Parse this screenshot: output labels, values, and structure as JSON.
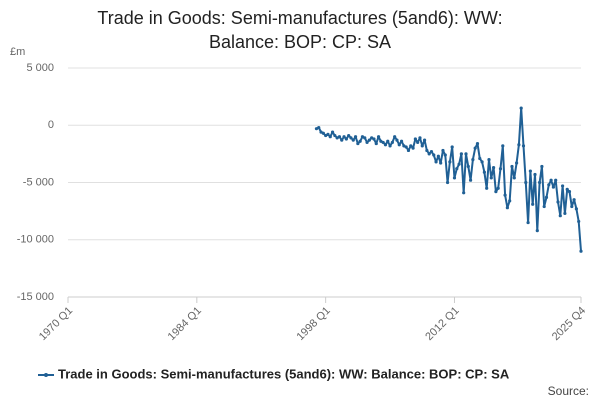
{
  "chart_data": {
    "type": "line",
    "title": "Trade in Goods: Semi-manufactures (5and6): WW: Balance: BOP: CP: SA",
    "y_label": "£m",
    "source": "Source:",
    "xlim": [
      1970,
      2025.75
    ],
    "xticks": [
      {
        "value": 1970,
        "label": "1970 Q1"
      },
      {
        "value": 1984,
        "label": "1984 Q1"
      },
      {
        "value": 1998,
        "label": "1998 Q1"
      },
      {
        "value": 2012,
        "label": "2012 Q1"
      },
      {
        "value": 2025.75,
        "label": "2025 Q4"
      }
    ],
    "ylim": [
      -15000,
      5000
    ],
    "yticks": [
      {
        "value": -15000,
        "label": "-15 000"
      },
      {
        "value": -10000,
        "label": "-10 000"
      },
      {
        "value": -5000,
        "label": "-5 000"
      },
      0,
      {
        "value": 5000,
        "label": "5 000"
      }
    ],
    "grid": true,
    "x": [
      1997,
      1997.25,
      1997.5,
      1997.75,
      1998,
      1998.25,
      1998.5,
      1998.75,
      1999,
      1999.25,
      1999.5,
      1999.75,
      2000,
      2000.25,
      2000.5,
      2000.75,
      2001,
      2001.25,
      2001.5,
      2001.75,
      2002,
      2002.25,
      2002.5,
      2002.75,
      2003,
      2003.25,
      2003.5,
      2003.75,
      2004,
      2004.25,
      2004.5,
      2004.75,
      2005,
      2005.25,
      2005.5,
      2005.75,
      2006,
      2006.25,
      2006.5,
      2006.75,
      2007,
      2007.25,
      2007.5,
      2007.75,
      2008,
      2008.25,
      2008.5,
      2008.75,
      2009,
      2009.25,
      2009.5,
      2009.75,
      2010,
      2010.25,
      2010.5,
      2010.75,
      2011,
      2011.25,
      2011.5,
      2011.75,
      2012,
      2012.25,
      2012.5,
      2012.75,
      2013,
      2013.25,
      2013.5,
      2013.75,
      2014,
      2014.25,
      2014.5,
      2014.75,
      2015,
      2015.25,
      2015.5,
      2015.75,
      2016,
      2016.25,
      2016.5,
      2016.75,
      2017,
      2017.25,
      2017.5,
      2017.75,
      2018,
      2018.25,
      2018.5,
      2018.75,
      2019,
      2019.25,
      2019.5,
      2019.75,
      2020,
      2020.25,
      2020.5,
      2020.75,
      2021,
      2021.25,
      2021.5,
      2021.75,
      2022,
      2022.25,
      2022.5,
      2022.75,
      2023,
      2023.25,
      2023.5,
      2023.75,
      2024,
      2024.25,
      2024.5,
      2024.75,
      2025,
      2025.25,
      2025.5,
      2025.75
    ],
    "series": [
      {
        "name": "Trade in Goods: Semi-manufactures (5and6): WW: Balance: BOP: CP: SA",
        "color": "#206095",
        "values": [
          -300,
          -200,
          -600,
          -700,
          -900,
          -800,
          -1000,
          -600,
          -900,
          -1100,
          -1000,
          -1300,
          -1000,
          -1200,
          -900,
          -1100,
          -1300,
          -1000,
          -1600,
          -1400,
          -1000,
          -1100,
          -1500,
          -1300,
          -1100,
          -1200,
          -1600,
          -1000,
          -1400,
          -1500,
          -1700,
          -1400,
          -1800,
          -1500,
          -1000,
          -1300,
          -1700,
          -1400,
          -1800,
          -1900,
          -2200,
          -1800,
          -2000,
          -1200,
          -1500,
          -1100,
          -1800,
          -1300,
          -2200,
          -2500,
          -2300,
          -2600,
          -3200,
          -2700,
          -3300,
          -2200,
          -2600,
          -5000,
          -3200,
          -1900,
          -4600,
          -3800,
          -3400,
          -2500,
          -5900,
          -2500,
          -3600,
          -4800,
          -3000,
          -2000,
          -1600,
          -2900,
          -3200,
          -4100,
          -5500,
          -3000,
          -4600,
          -3700,
          -5800,
          -5500,
          -3800,
          -1800,
          -6100,
          -7200,
          -6600,
          -3600,
          -4600,
          -3300,
          -1700,
          1500,
          -1800,
          -5000,
          -8500,
          -4000,
          -6900,
          -4300,
          -9200,
          -5000,
          -3600,
          -7100,
          -6300,
          -5200,
          -4800,
          -5400,
          -4800,
          -6700,
          -7900,
          -5300,
          -7700,
          -5600,
          -5800,
          -7100,
          -6500,
          -7300,
          -8400,
          -11000
        ]
      }
    ]
  }
}
